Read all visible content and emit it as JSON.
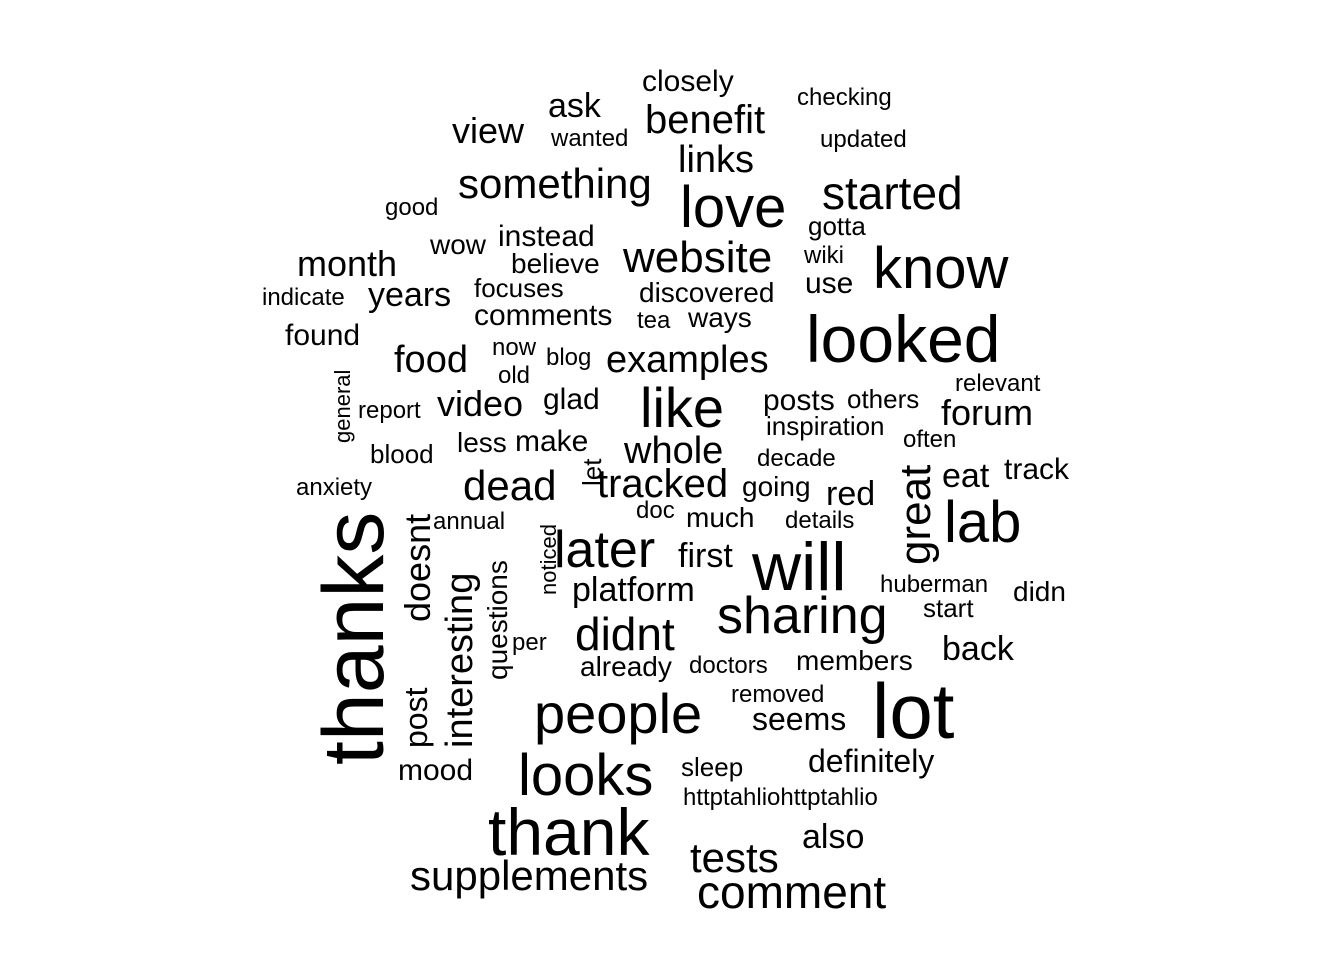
{
  "chart_data": {
    "type": "wordcloud",
    "color": "#000000",
    "words": [
      {
        "text": "thanks",
        "weight": 10,
        "vertical": true
      },
      {
        "text": "lot",
        "weight": 9.5
      },
      {
        "text": "thank",
        "weight": 8.5
      },
      {
        "text": "looked",
        "weight": 8
      },
      {
        "text": "will",
        "weight": 8
      },
      {
        "text": "looks",
        "weight": 7.5
      },
      {
        "text": "people",
        "weight": 7
      },
      {
        "text": "love",
        "weight": 7
      },
      {
        "text": "know",
        "weight": 7
      },
      {
        "text": "lab",
        "weight": 7
      },
      {
        "text": "like",
        "weight": 6.5
      },
      {
        "text": "sharing",
        "weight": 6
      },
      {
        "text": "later",
        "weight": 6
      },
      {
        "text": "comment",
        "weight": 5.5
      },
      {
        "text": "great",
        "weight": 5.5,
        "vertical": true
      },
      {
        "text": "started",
        "weight": 5.5
      },
      {
        "text": "didnt",
        "weight": 5.5
      },
      {
        "text": "supplements",
        "weight": 5.2
      },
      {
        "text": "website",
        "weight": 5.2
      },
      {
        "text": "tests",
        "weight": 5
      },
      {
        "text": "something",
        "weight": 5
      },
      {
        "text": "dead",
        "weight": 5
      },
      {
        "text": "interesting",
        "weight": 4.8,
        "vertical": true
      },
      {
        "text": "tracked",
        "weight": 4.8
      },
      {
        "text": "whole",
        "weight": 4.8
      },
      {
        "text": "benefit",
        "weight": 4.8
      },
      {
        "text": "examples",
        "weight": 4.6
      },
      {
        "text": "links",
        "weight": 4.6
      },
      {
        "text": "food",
        "weight": 4.6
      },
      {
        "text": "doesnt",
        "weight": 4.4,
        "vertical": true
      },
      {
        "text": "forum",
        "weight": 4.4
      },
      {
        "text": "video",
        "weight": 4.4
      },
      {
        "text": "platform",
        "weight": 4.2
      },
      {
        "text": "month",
        "weight": 4.2
      },
      {
        "text": "first",
        "weight": 4.2
      },
      {
        "text": "view",
        "weight": 4.2
      },
      {
        "text": "also",
        "weight": 4.2
      },
      {
        "text": "red",
        "weight": 4.2
      },
      {
        "text": "post",
        "weight": 4,
        "vertical": true
      },
      {
        "text": "years",
        "weight": 4
      },
      {
        "text": "ask",
        "weight": 4
      },
      {
        "text": "eat",
        "weight": 4
      },
      {
        "text": "back",
        "weight": 4
      },
      {
        "text": "seems",
        "weight": 4
      },
      {
        "text": "track",
        "weight": 3.8
      },
      {
        "text": "mood",
        "weight": 3.8
      },
      {
        "text": "definitely",
        "weight": 3.8
      },
      {
        "text": "posts",
        "weight": 3.8
      },
      {
        "text": "found",
        "weight": 3.8
      },
      {
        "text": "questions",
        "weight": 3.6,
        "vertical": true
      },
      {
        "text": "glad",
        "weight": 3.6
      },
      {
        "text": "members",
        "weight": 3.6
      },
      {
        "text": "instead",
        "weight": 3.6
      },
      {
        "text": "comments",
        "weight": 3.6
      },
      {
        "text": "discovered",
        "weight": 3.6
      },
      {
        "text": "closely",
        "weight": 3.6
      },
      {
        "text": "already",
        "weight": 3.4
      },
      {
        "text": "much",
        "weight": 3.4
      },
      {
        "text": "make",
        "weight": 3.4
      },
      {
        "text": "believe",
        "weight": 3.4
      },
      {
        "text": "going",
        "weight": 3.4
      },
      {
        "text": "ways",
        "weight": 3.4
      },
      {
        "text": "less",
        "weight": 3.4
      },
      {
        "text": "use",
        "weight": 3.4
      },
      {
        "text": "let",
        "weight": 3.2,
        "vertical": true
      },
      {
        "text": "wow",
        "weight": 3.2
      },
      {
        "text": "sleep",
        "weight": 3.2
      },
      {
        "text": "focuses",
        "weight": 3.2
      },
      {
        "text": "others",
        "weight": 3.2
      },
      {
        "text": "blood",
        "weight": 3.2
      },
      {
        "text": "didn",
        "weight": 3.2
      },
      {
        "text": "inspiration",
        "weight": 3.2
      },
      {
        "text": "removed",
        "weight": 3
      },
      {
        "text": "doctors",
        "weight": 3
      },
      {
        "text": "huberman",
        "weight": 3
      },
      {
        "text": "start",
        "weight": 3
      },
      {
        "text": "gotta",
        "weight": 3
      },
      {
        "text": "details",
        "weight": 3
      },
      {
        "text": "decade",
        "weight": 3
      },
      {
        "text": "httptahliohttptahlio",
        "weight": 3
      },
      {
        "text": "often",
        "weight": 3
      },
      {
        "text": "wanted",
        "weight": 3
      },
      {
        "text": "updated",
        "weight": 3
      },
      {
        "text": "checking",
        "weight": 3
      },
      {
        "text": "report",
        "weight": 3
      },
      {
        "text": "annual",
        "weight": 3
      },
      {
        "text": "per",
        "weight": 3
      },
      {
        "text": "now",
        "weight": 3
      },
      {
        "text": "old",
        "weight": 3
      },
      {
        "text": "blog",
        "weight": 3
      },
      {
        "text": "tea",
        "weight": 3
      },
      {
        "text": "wiki",
        "weight": 3
      },
      {
        "text": "doc",
        "weight": 3
      },
      {
        "text": "good",
        "weight": 3
      },
      {
        "text": "relevant",
        "weight": 3
      },
      {
        "text": "anxiety",
        "weight": 3
      },
      {
        "text": "indicate",
        "weight": 3
      },
      {
        "text": "general",
        "weight": 2.8,
        "vertical": true
      },
      {
        "text": "noticed",
        "weight": 2.8,
        "vertical": true
      }
    ]
  }
}
